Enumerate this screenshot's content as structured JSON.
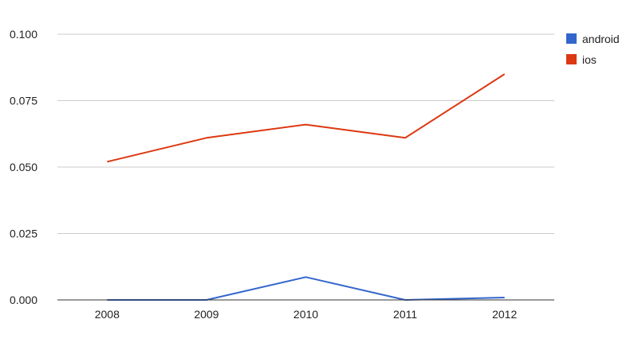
{
  "chart_data": {
    "type": "line",
    "title": "",
    "xlabel": "",
    "ylabel": "",
    "categories": [
      "2008",
      "2009",
      "2010",
      "2011",
      "2012"
    ],
    "ylim": [
      0,
      0.1
    ],
    "yticks": [
      "0.000",
      "0.025",
      "0.050",
      "0.075",
      "0.100"
    ],
    "grid": true,
    "legend_position": "right",
    "series": [
      {
        "name": "android",
        "color": "#3366cc",
        "values": [
          0.0,
          0.0,
          0.0086,
          0.0,
          0.0009
        ]
      },
      {
        "name": "ios",
        "color": "#dc3912",
        "values": [
          0.052,
          0.061,
          0.066,
          0.061,
          0.085
        ]
      }
    ]
  }
}
